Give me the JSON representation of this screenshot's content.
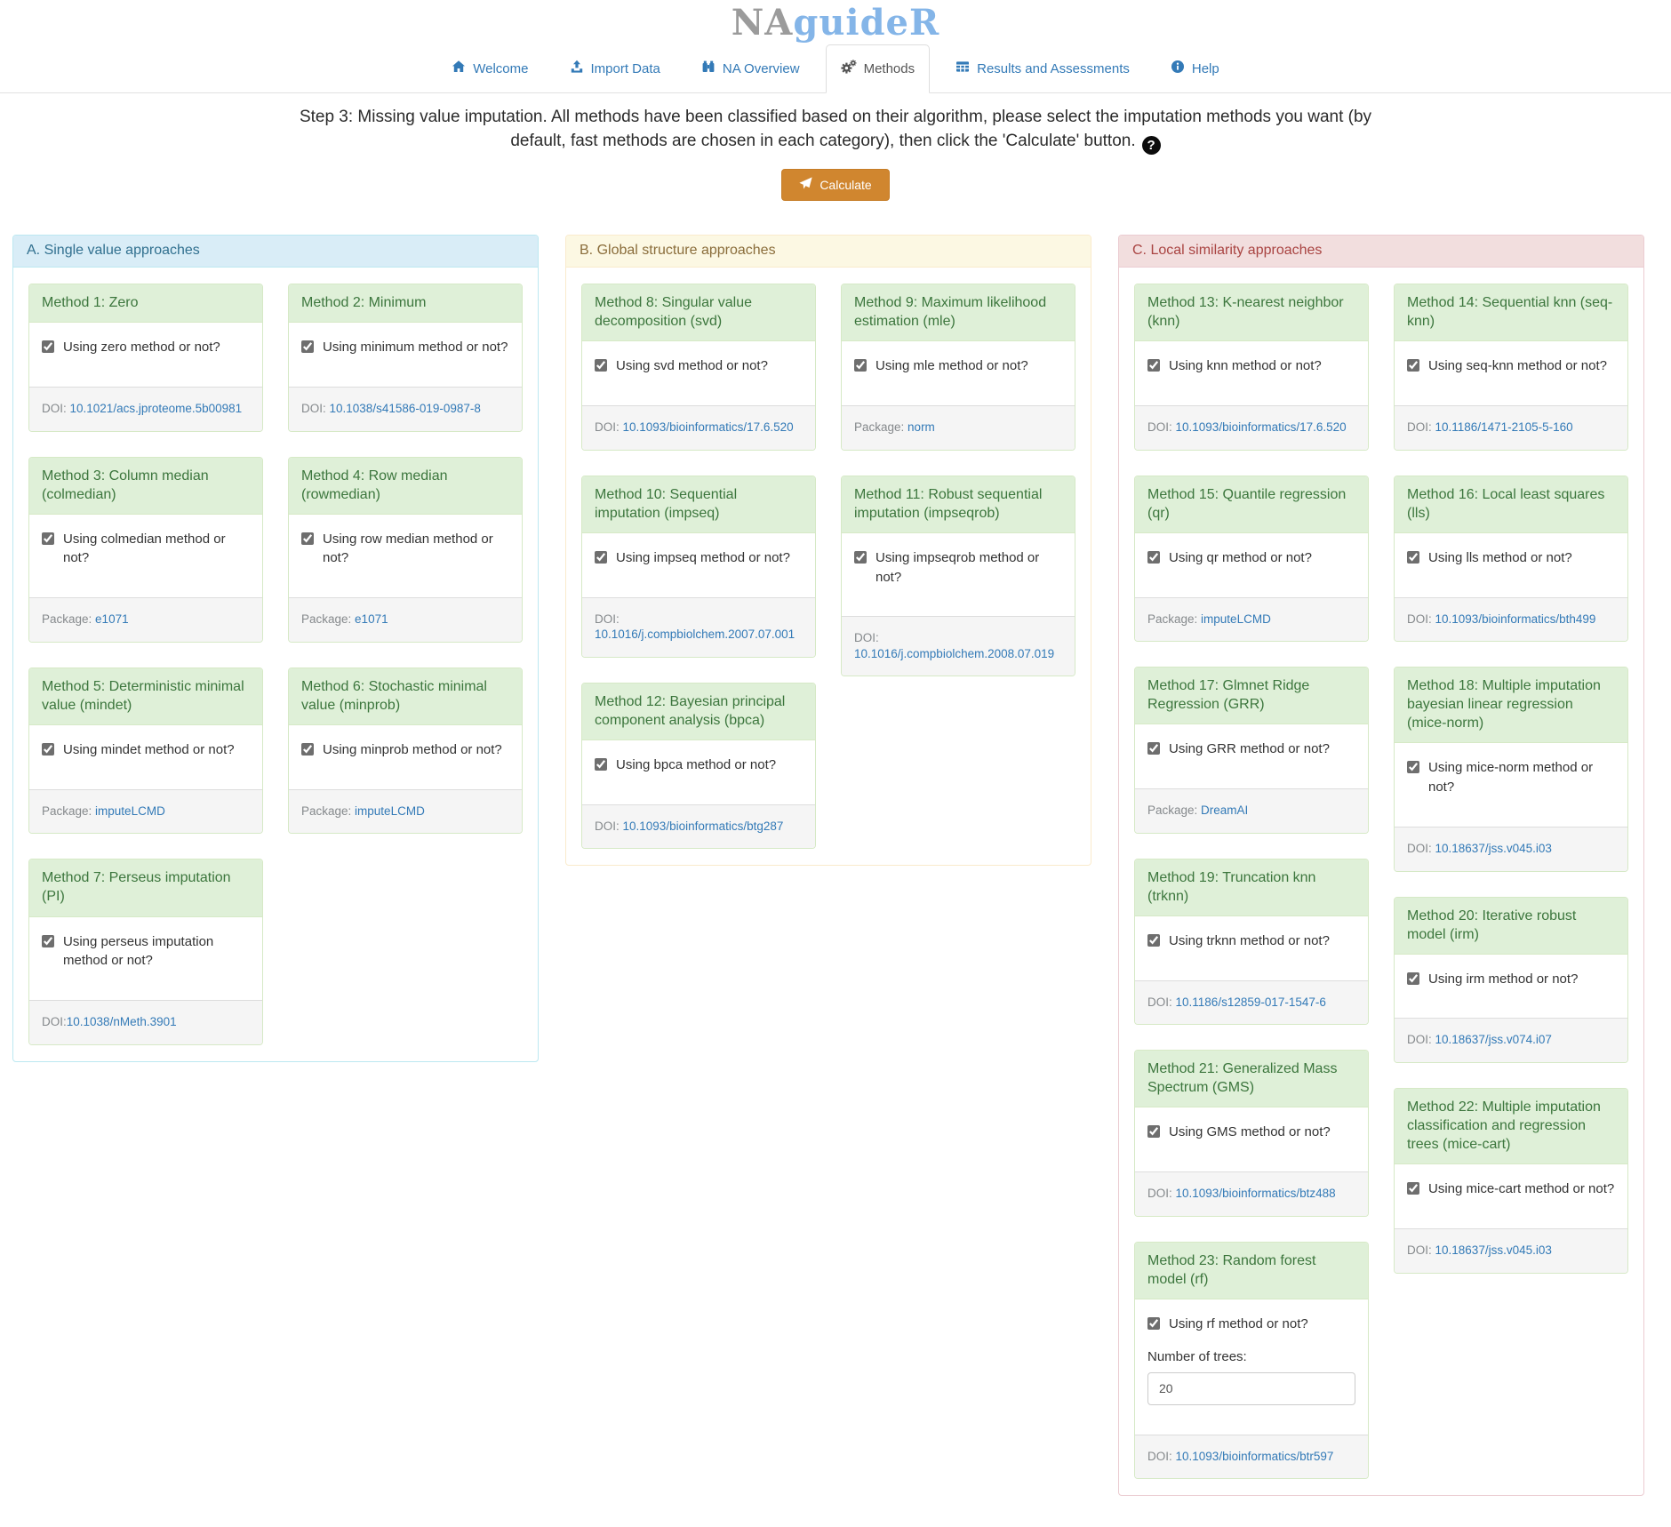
{
  "logo": {
    "gray": "NA",
    "blue": "guideR"
  },
  "nav": {
    "items": [
      {
        "label": "Welcome",
        "icon": "home-icon",
        "active": false
      },
      {
        "label": "Import Data",
        "icon": "upload-icon",
        "active": false
      },
      {
        "label": "NA Overview",
        "icon": "binoculars-icon",
        "active": false
      },
      {
        "label": "Methods",
        "icon": "gears-icon",
        "active": true
      },
      {
        "label": "Results and Assessments",
        "icon": "table-icon",
        "active": false
      },
      {
        "label": "Help",
        "icon": "info-icon",
        "active": false
      }
    ]
  },
  "step": {
    "text": "Step 3: Missing value imputation. All methods have been classified based on their algorithm, please select the imputation methods you want (by default, fast methods are chosen in each category), then click the 'Calculate' button.",
    "help_glyph": "?",
    "calculate_label": "Calculate"
  },
  "accent_colors": {
    "button_orange": "#d0862f",
    "link_blue": "#337ab7",
    "panel_a_bg": "#d9edf7",
    "panel_b_bg": "#fcf8e3",
    "panel_c_bg": "#f2dede",
    "method_header_bg": "#dff0d8"
  },
  "panels": [
    {
      "title": "A. Single value approaches",
      "theme": "info",
      "columns": [
        [
          {
            "title": "Method 1: Zero",
            "checkbox_label": "Using zero method or not?",
            "checked": true,
            "footer_label": "DOI: ",
            "footer_link": "10.1021/acs.jproteome.5b00981"
          },
          {
            "title": "Method 3: Column median (colmedian)",
            "checkbox_label": "Using colmedian method or not?",
            "checked": true,
            "footer_label": "Package: ",
            "footer_link": "e1071"
          },
          {
            "title": "Method 5: Deterministic minimal value (mindet)",
            "checkbox_label": "Using mindet method or not?",
            "checked": true,
            "footer_label": "Package: ",
            "footer_link": "imputeLCMD"
          },
          {
            "title": "Method 7: Perseus imputation (PI)",
            "checkbox_label": "Using perseus imputation method or not?",
            "checked": true,
            "footer_label": "DOI:",
            "footer_link": "10.1038/nMeth.3901"
          }
        ],
        [
          {
            "title": "Method 2: Minimum",
            "checkbox_label": "Using minimum method or not?",
            "checked": true,
            "footer_label": "DOI: ",
            "footer_link": "10.1038/s41586-019-0987-8"
          },
          {
            "title": "Method 4: Row median (rowmedian)",
            "checkbox_label": "Using row median method or not?",
            "checked": true,
            "footer_label": "Package: ",
            "footer_link": "e1071"
          },
          {
            "title": "Method 6: Stochastic minimal value (minprob)",
            "checkbox_label": "Using minprob method or not?",
            "checked": true,
            "footer_label": "Package: ",
            "footer_link": "imputeLCMD"
          }
        ]
      ]
    },
    {
      "title": "B. Global structure approaches",
      "theme": "warning",
      "columns": [
        [
          {
            "title": "Method 8: Singular value decomposition (svd)",
            "checkbox_label": "Using svd method or not?",
            "checked": true,
            "footer_label": "DOI: ",
            "footer_link": "10.1093/bioinformatics/17.6.520"
          },
          {
            "title": "Method 10: Sequential imputation (impseq)",
            "checkbox_label": "Using impseq method or not?",
            "checked": true,
            "footer_label": "DOI: ",
            "footer_link": "10.1016/j.compbiolchem.2007.07.001"
          },
          {
            "title": "Method 12: Bayesian principal component analysis (bpca)",
            "checkbox_label": "Using bpca method or not?",
            "checked": true,
            "footer_label": "DOI: ",
            "footer_link": "10.1093/bioinformatics/btg287"
          }
        ],
        [
          {
            "title": "Method 9: Maximum likelihood estimation (mle)",
            "checkbox_label": "Using mle method or not?",
            "checked": true,
            "footer_label": "Package: ",
            "footer_link": "norm"
          },
          {
            "title": "Method 11: Robust sequential imputation (impseqrob)",
            "checkbox_label": "Using impseqrob method or not?",
            "checked": true,
            "footer_label": "DOI: ",
            "footer_link": "10.1016/j.compbiolchem.2008.07.019"
          }
        ]
      ]
    },
    {
      "title": "C. Local similarity approaches",
      "theme": "danger",
      "columns": [
        [
          {
            "title": "Method 13: K-nearest neighbor (knn)",
            "checkbox_label": "Using knn method or not?",
            "checked": true,
            "footer_label": "DOI: ",
            "footer_link": "10.1093/bioinformatics/17.6.520"
          },
          {
            "title": "Method 15: Quantile regression (qr)",
            "checkbox_label": "Using qr method or not?",
            "checked": true,
            "footer_label": "Package: ",
            "footer_link": "imputeLCMD"
          },
          {
            "title": "Method 17: Glmnet Ridge Regression (GRR)",
            "checkbox_label": "Using GRR method or not?",
            "checked": true,
            "footer_label": "Package: ",
            "footer_link": "DreamAI"
          },
          {
            "title": "Method 19: Truncation knn (trknn)",
            "checkbox_label": "Using trknn method or not?",
            "checked": true,
            "footer_label": "DOI: ",
            "footer_link": "10.1186/s12859-017-1547-6"
          },
          {
            "title": "Method 21: Generalized Mass Spectrum (GMS)",
            "checkbox_label": "Using GMS method or not?",
            "checked": true,
            "footer_label": "DOI: ",
            "footer_link": "10.1093/bioinformatics/btz488"
          },
          {
            "title": "Method 23: Random forest model (rf)",
            "checkbox_label": "Using rf method or not?",
            "checked": true,
            "number_label": "Number of trees:",
            "number_value": "20",
            "footer_label": "DOI: ",
            "footer_link": "10.1093/bioinformatics/btr597"
          }
        ],
        [
          {
            "title": "Method 14: Sequential knn (seq-knn)",
            "checkbox_label": "Using seq-knn method or not?",
            "checked": true,
            "footer_label": "DOI: ",
            "footer_link": "10.1186/1471-2105-5-160"
          },
          {
            "title": "Method 16: Local least squares (lls)",
            "checkbox_label": "Using lls method or not?",
            "checked": true,
            "footer_label": "DOI: ",
            "footer_link": "10.1093/bioinformatics/bth499"
          },
          {
            "title": "Method 18: Multiple imputation bayesian linear regression (mice-norm)",
            "checkbox_label": "Using mice-norm method or not?",
            "checked": true,
            "footer_label": "DOI: ",
            "footer_link": "10.18637/jss.v045.i03"
          },
          {
            "title": "Method 20: Iterative robust model (irm)",
            "checkbox_label": "Using irm method or not?",
            "checked": true,
            "footer_label": "DOI: ",
            "footer_link": "10.18637/jss.v074.i07"
          },
          {
            "title": "Method 22: Multiple imputation classification and regression trees (mice-cart)",
            "checkbox_label": "Using mice-cart method or not?",
            "checked": true,
            "footer_label": "DOI: ",
            "footer_link": "10.18637/jss.v045.i03"
          }
        ]
      ]
    }
  ]
}
